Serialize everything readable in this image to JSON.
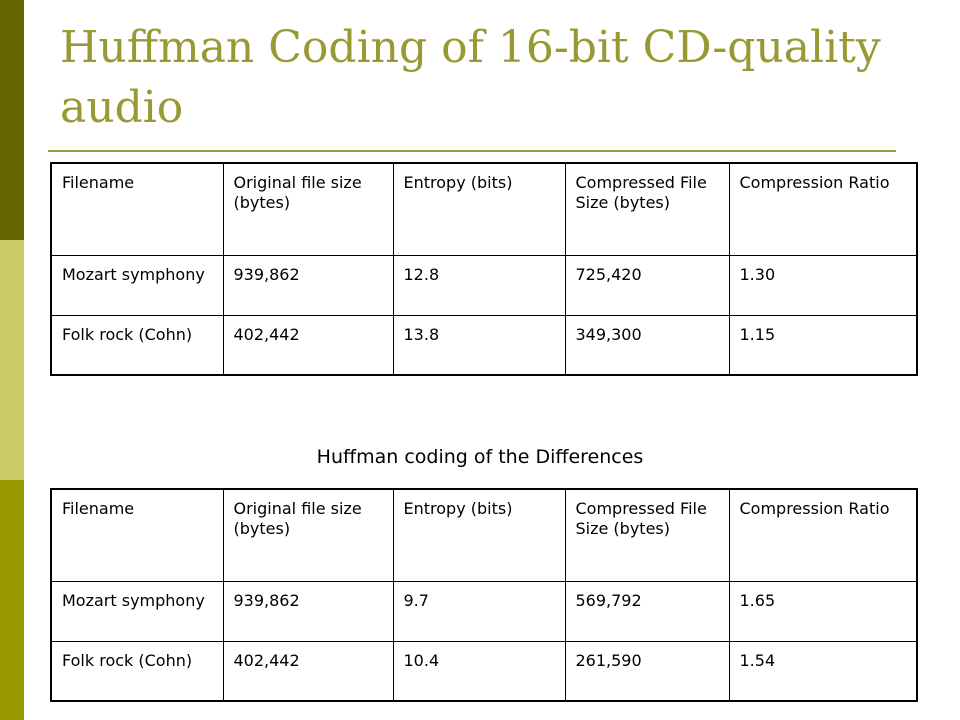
{
  "slide": {
    "title": "Huffman Coding of 16-bit CD-quality audio",
    "caption": "Huffman coding of the Differences",
    "colors": {
      "title": "#999933",
      "sidebar_top": "#666600",
      "sidebar_middle": "#cccc66",
      "sidebar_bottom": "#999900"
    }
  },
  "table1": {
    "headers": [
      "Filename",
      "Original file size (bytes)",
      "Entropy (bits)",
      "Compressed File Size (bytes)",
      "Compression Ratio"
    ],
    "rows": [
      [
        "Mozart symphony",
        "939,862",
        "12.8",
        "725,420",
        "1.30"
      ],
      [
        "Folk rock (Cohn)",
        "402,442",
        "13.8",
        "349,300",
        "1.15"
      ]
    ]
  },
  "table2": {
    "headers": [
      "Filename",
      "Original file size (bytes)",
      "Entropy (bits)",
      "Compressed File Size (bytes)",
      "Compression Ratio"
    ],
    "rows": [
      [
        "Mozart symphony",
        "939,862",
        "9.7",
        "569,792",
        "1.65"
      ],
      [
        "Folk rock (Cohn)",
        "402,442",
        "10.4",
        "261,590",
        "1.54"
      ]
    ]
  }
}
